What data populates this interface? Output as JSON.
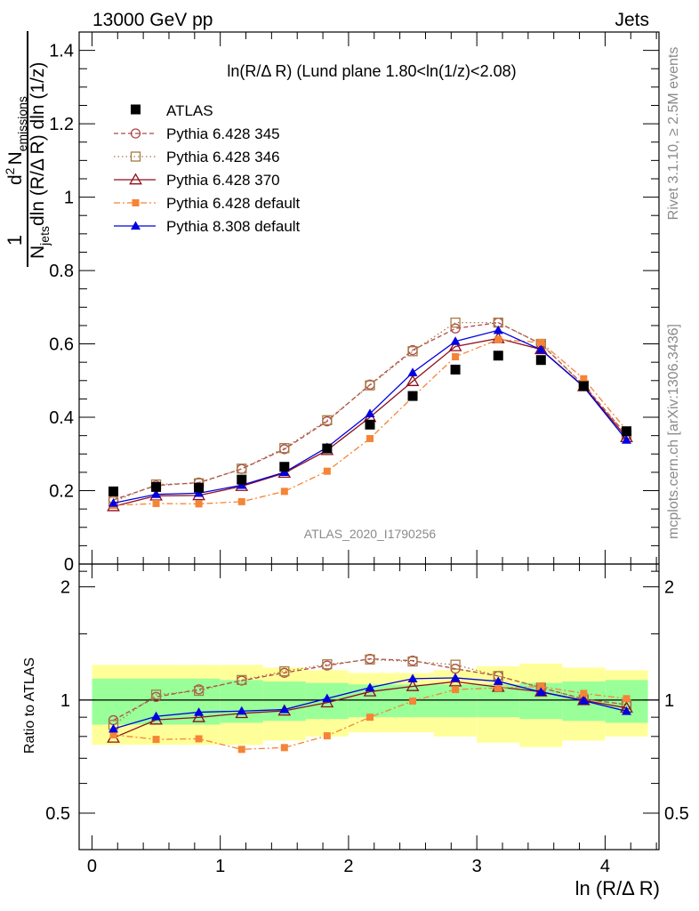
{
  "header": {
    "left": "13000 GeV pp",
    "right": "Jets"
  },
  "side_labels": {
    "rivet": "Rivet 3.1.10, ≥ 2.5M events",
    "mcplots": "mcplots.cern.ch [arXiv:1306.3436]"
  },
  "chart_data": {
    "type": "line",
    "title": "ln(R/Δ R) (Lund plane 1.80<ln(1/z)<2.08)",
    "watermark": "ATLAS_2020_I1790256",
    "xlabel": "ln (R/Δ R)",
    "xlim": [
      -0.1,
      4.42
    ],
    "x_ticks": [
      "0",
      "1",
      "2",
      "3",
      "4"
    ],
    "main": {
      "ylabel_parts": {
        "one": "1",
        "njets": "N",
        "njets_sub": "jets",
        "dln": "dln (R/Δ R) dln (1/z)",
        "d2": "d",
        "d2_sup": "2",
        "nemis": "N",
        "nemis_sub": "emissions"
      },
      "ylim": [
        0,
        1.45
      ],
      "y_ticks": [
        "0",
        "0.2",
        "0.4",
        "0.6",
        "0.8",
        "1",
        "1.2",
        "1.4"
      ]
    },
    "ratio": {
      "ylabel": "Ratio to ATLAS",
      "ylim": [
        0.4,
        2.3
      ],
      "log_scale": true,
      "y_ticks": [
        "0.5",
        "1",
        "2"
      ],
      "band_inner": [
        0.14,
        0.14,
        0.14,
        0.13,
        0.12,
        0.11,
        0.1,
        0.1,
        0.1,
        0.1,
        0.11,
        0.12,
        0.13
      ],
      "band_outer": [
        0.24,
        0.24,
        0.24,
        0.24,
        0.22,
        0.2,
        0.18,
        0.18,
        0.2,
        0.23,
        0.25,
        0.22,
        0.2
      ]
    },
    "x": [
      0.167,
      0.5,
      0.833,
      1.167,
      1.5,
      1.833,
      2.167,
      2.5,
      2.833,
      3.167,
      3.5,
      3.833,
      4.167
    ],
    "data": {
      "name": "ATLAS",
      "values": [
        0.198,
        0.21,
        0.208,
        0.23,
        0.265,
        0.315,
        0.38,
        0.458,
        0.53,
        0.568,
        0.556,
        0.485,
        0.362
      ]
    },
    "series": [
      {
        "name": "Pythia 6.428 345",
        "color": "#b2474b",
        "marker": "open-circle",
        "dash": "5,3",
        "values": [
          0.175,
          0.214,
          0.222,
          0.259,
          0.313,
          0.389,
          0.489,
          0.583,
          0.642,
          0.658,
          0.6,
          0.488,
          0.352
        ]
      },
      {
        "name": "Pythia 6.428 346",
        "color": "#a57a44",
        "marker": "open-square",
        "dash": "1.5,3",
        "values": [
          0.17,
          0.217,
          0.22,
          0.26,
          0.316,
          0.392,
          0.487,
          0.58,
          0.658,
          0.658,
          0.6,
          0.487,
          0.352
        ]
      },
      {
        "name": "Pythia 6.428 370",
        "color": "#8e0f1c",
        "marker": "open-triangle",
        "dash": "",
        "values": [
          0.157,
          0.186,
          0.187,
          0.212,
          0.248,
          0.31,
          0.4,
          0.498,
          0.593,
          0.615,
          0.585,
          0.484,
          0.345
        ]
      },
      {
        "name": "Pythia 6.428 default",
        "color": "#f58436",
        "marker": "filled-square",
        "dash": "7,3,2,3",
        "values": [
          0.16,
          0.165,
          0.164,
          0.17,
          0.198,
          0.253,
          0.342,
          0.455,
          0.565,
          0.612,
          0.604,
          0.505,
          0.365
        ]
      },
      {
        "name": "Pythia 8.308 default",
        "color": "#0000e0",
        "marker": "filled-triangle",
        "dash": "",
        "values": [
          0.166,
          0.19,
          0.193,
          0.215,
          0.25,
          0.318,
          0.41,
          0.522,
          0.607,
          0.637,
          0.584,
          0.483,
          0.338
        ]
      }
    ]
  }
}
